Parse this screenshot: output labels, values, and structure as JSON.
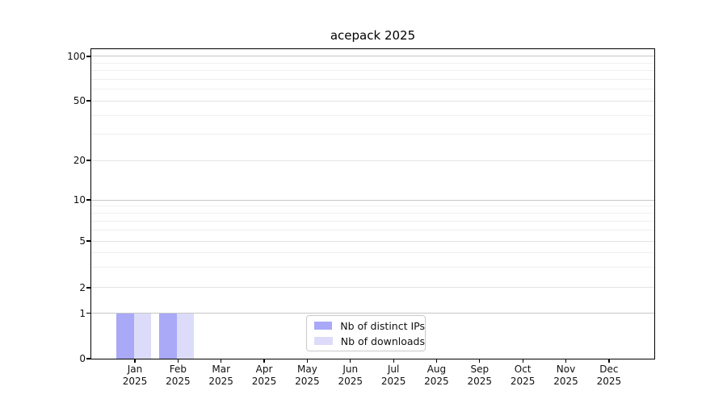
{
  "chart_data": {
    "type": "bar",
    "title": "acepack 2025",
    "categories": [
      "Jan 2025",
      "Feb 2025",
      "Mar 2025",
      "Apr 2025",
      "May 2025",
      "Jun 2025",
      "Jul 2025",
      "Aug 2025",
      "Sep 2025",
      "Oct 2025",
      "Nov 2025",
      "Dec 2025"
    ],
    "series": [
      {
        "name": "Nb of distinct IPs",
        "color": "#a9a9f8",
        "values": [
          1,
          1,
          0,
          0,
          0,
          0,
          0,
          0,
          0,
          0,
          0,
          0
        ]
      },
      {
        "name": "Nb of downloads",
        "color": "#dcdcfa",
        "values": [
          1,
          1,
          0,
          0,
          0,
          0,
          0,
          0,
          0,
          0,
          0,
          0
        ]
      }
    ],
    "yscale": "symlog",
    "ytick_labels": [
      0,
      1,
      2,
      5,
      10,
      20,
      50,
      100
    ],
    "ylim": [
      0,
      120
    ],
    "xlabel": "",
    "ylabel": "",
    "grid": true,
    "legend_position": "lower-center-inside"
  },
  "colors": {
    "major_grid": "#c6c6c6",
    "mid_grid": "#e3e3e3",
    "minor_grid": "#efefef"
  }
}
